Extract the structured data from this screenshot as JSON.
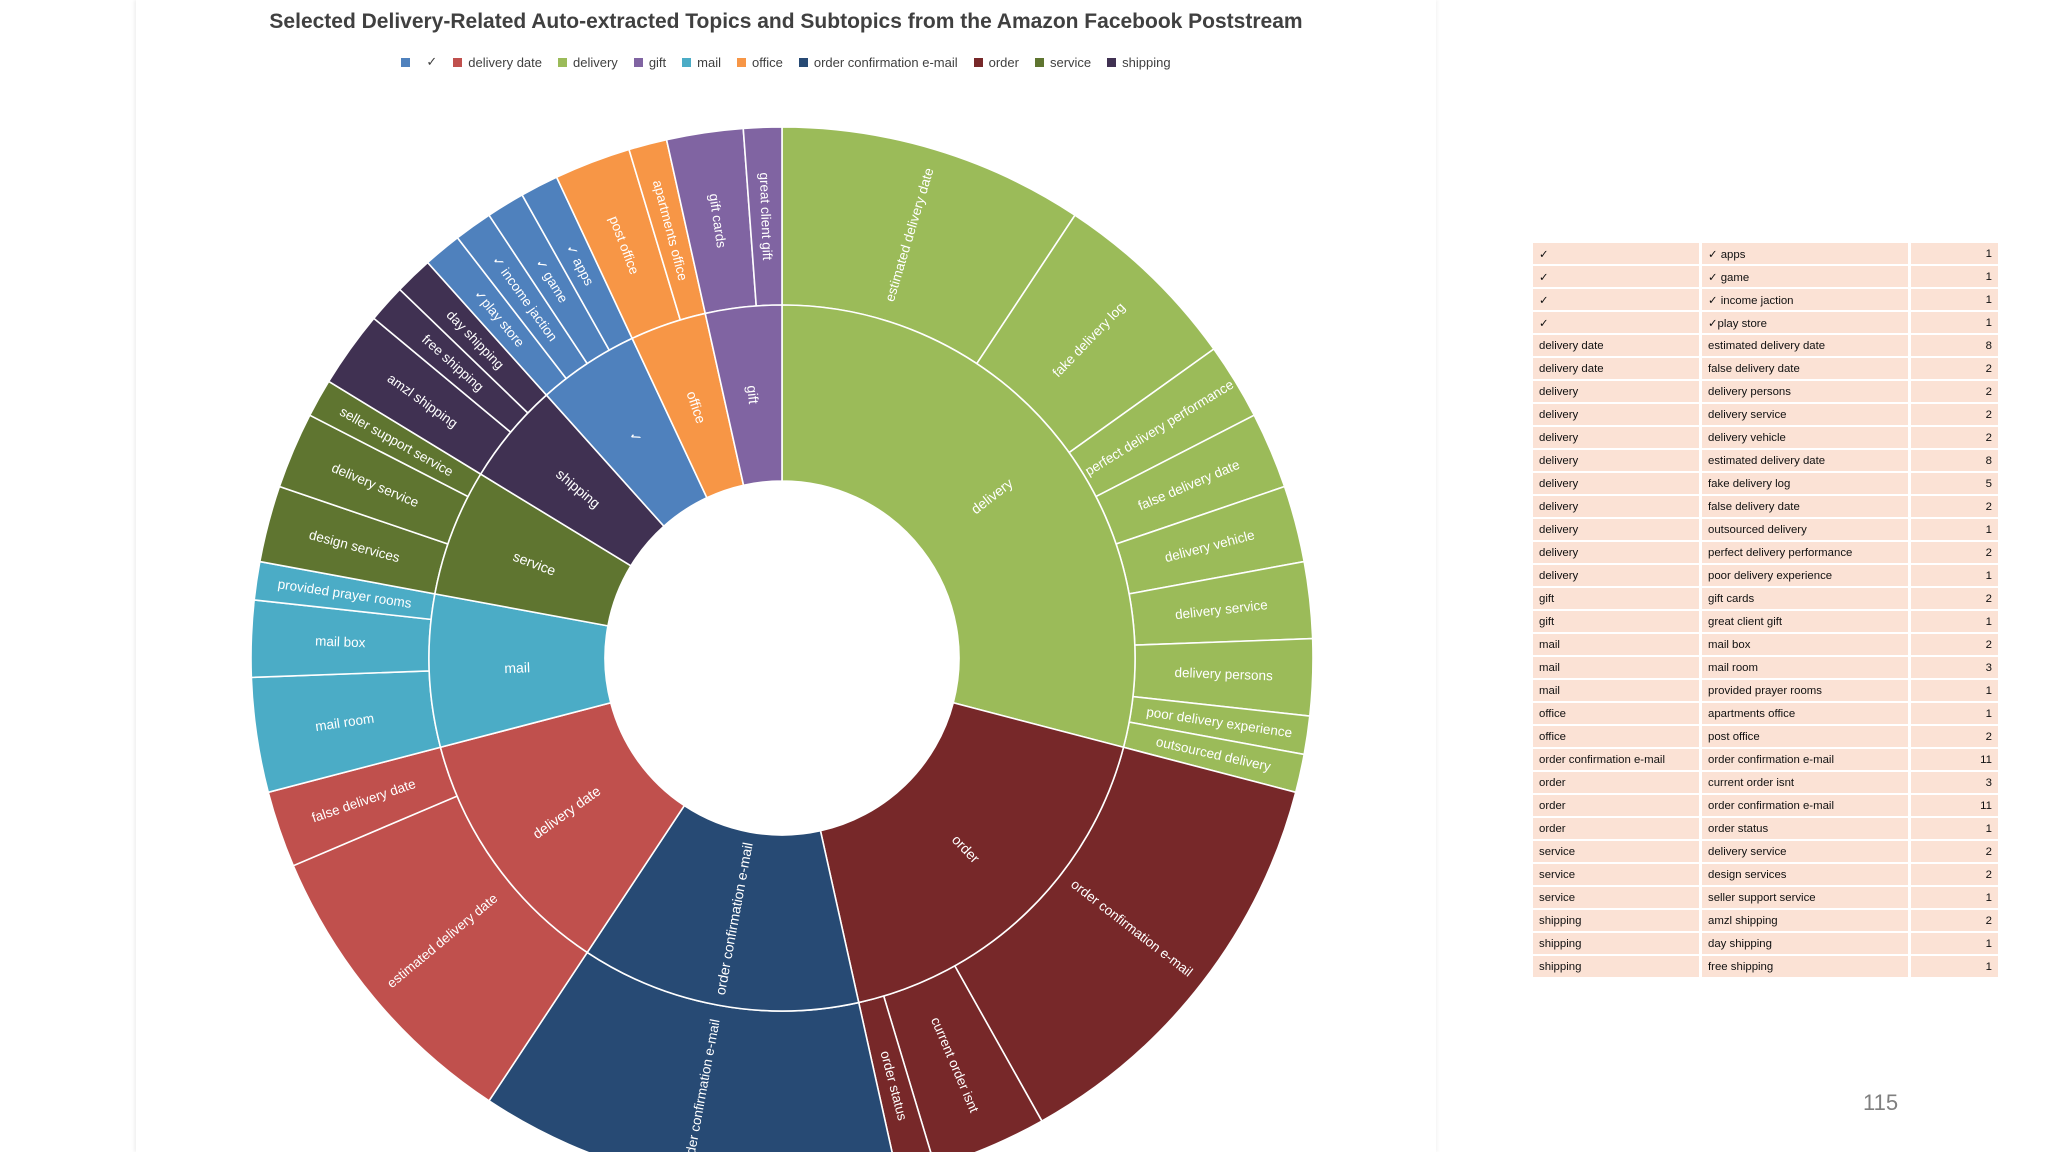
{
  "slide": {
    "page_number": "115"
  },
  "chart_data": {
    "type": "sunburst",
    "title": "Selected Delivery-Related Auto-extracted Topics and Subtopics from the Amazon Facebook Poststream",
    "legend_position": "top",
    "categories": [
      {
        "name": "delivery",
        "color": "#9bbb59",
        "children": [
          {
            "name": "estimated delivery date",
            "value": 8
          },
          {
            "name": "fake delivery log",
            "value": 5
          },
          {
            "name": "perfect delivery performance",
            "value": 2
          },
          {
            "name": "false delivery date",
            "value": 2
          },
          {
            "name": "delivery vehicle",
            "value": 2
          },
          {
            "name": "delivery service",
            "value": 2
          },
          {
            "name": "delivery persons",
            "value": 2
          },
          {
            "name": "poor delivery experience",
            "value": 1
          },
          {
            "name": "outsourced delivery",
            "value": 1
          }
        ]
      },
      {
        "name": "order",
        "color": "#772829",
        "children": [
          {
            "name": "order confirmation e-mail",
            "value": 11
          },
          {
            "name": "current order isnt",
            "value": 3
          },
          {
            "name": "order status",
            "value": 1
          }
        ]
      },
      {
        "name": "order confirmation e-mail",
        "color": "#274a74",
        "children": [
          {
            "name": "order confirmation e-mail",
            "value": 11
          }
        ]
      },
      {
        "name": "delivery date",
        "color": "#c0504d",
        "children": [
          {
            "name": "estimated delivery date",
            "value": 8
          },
          {
            "name": "false delivery date",
            "value": 2
          }
        ]
      },
      {
        "name": "mail",
        "color": "#4bacc6",
        "children": [
          {
            "name": "mail room",
            "value": 3
          },
          {
            "name": "mail box",
            "value": 2
          },
          {
            "name": "provided prayer rooms",
            "value": 1
          }
        ]
      },
      {
        "name": "service",
        "color": "#5f7530",
        "children": [
          {
            "name": "design services",
            "value": 2
          },
          {
            "name": "delivery service",
            "value": 2
          },
          {
            "name": "seller support service",
            "value": 1
          }
        ]
      },
      {
        "name": "shipping",
        "color": "#403152",
        "children": [
          {
            "name": "amzl shipping",
            "value": 2
          },
          {
            "name": "free shipping",
            "value": 1
          },
          {
            "name": "day shipping",
            "value": 1
          }
        ]
      },
      {
        "name": "✓",
        "color": "#4f81bd",
        "children": [
          {
            "name": "✓play store",
            "value": 1
          },
          {
            "name": "✓ income jaction",
            "value": 1
          },
          {
            "name": "✓ game",
            "value": 1
          },
          {
            "name": "✓ apps",
            "value": 1
          }
        ]
      },
      {
        "name": "office",
        "color": "#f79646",
        "children": [
          {
            "name": "post office",
            "value": 2
          },
          {
            "name": "apartments office",
            "value": 1
          }
        ]
      },
      {
        "name": "gift",
        "color": "#8064a2",
        "children": [
          {
            "name": "gift cards",
            "value": 2
          },
          {
            "name": "great client gift",
            "value": 1
          }
        ]
      }
    ],
    "legend": [
      {
        "label": "",
        "color": "#4f81bd"
      },
      {
        "label": "✓",
        "color": "#ffffff"
      },
      {
        "label": "delivery date",
        "color": "#c0504d"
      },
      {
        "label": "delivery",
        "color": "#9bbb59"
      },
      {
        "label": "gift",
        "color": "#8064a2"
      },
      {
        "label": "mail",
        "color": "#4bacc6"
      },
      {
        "label": "office",
        "color": "#f79646"
      },
      {
        "label": "order confirmation e-mail",
        "color": "#274a74"
      },
      {
        "label": "order",
        "color": "#772829"
      },
      {
        "label": "service",
        "color": "#5f7530"
      },
      {
        "label": "shipping",
        "color": "#403152"
      }
    ],
    "table": [
      [
        "✓",
        "✓ apps",
        "1"
      ],
      [
        "✓",
        "✓ game",
        "1"
      ],
      [
        "✓",
        "✓ income jaction",
        "1"
      ],
      [
        "✓",
        "✓play store",
        "1"
      ],
      [
        "delivery date",
        "estimated delivery date",
        "8"
      ],
      [
        "delivery date",
        "false delivery date",
        "2"
      ],
      [
        "delivery",
        "delivery persons",
        "2"
      ],
      [
        "delivery",
        "delivery service",
        "2"
      ],
      [
        "delivery",
        "delivery vehicle",
        "2"
      ],
      [
        "delivery",
        "estimated delivery date",
        "8"
      ],
      [
        "delivery",
        "fake delivery log",
        "5"
      ],
      [
        "delivery",
        "false delivery date",
        "2"
      ],
      [
        "delivery",
        "outsourced delivery",
        "1"
      ],
      [
        "delivery",
        "perfect delivery performance",
        "2"
      ],
      [
        "delivery",
        "poor delivery experience",
        "1"
      ],
      [
        "gift",
        "gift cards",
        "2"
      ],
      [
        "gift",
        "great client gift",
        "1"
      ],
      [
        "mail",
        "mail box",
        "2"
      ],
      [
        "mail",
        "mail room",
        "3"
      ],
      [
        "mail",
        "provided prayer rooms",
        "1"
      ],
      [
        "office",
        "apartments office",
        "1"
      ],
      [
        "office",
        "post office",
        "2"
      ],
      [
        "order confirmation e-mail",
        "order confirmation e-mail",
        "11"
      ],
      [
        "order",
        "current order isnt",
        "3"
      ],
      [
        "order",
        "order confirmation e-mail",
        "11"
      ],
      [
        "order",
        "order status",
        "1"
      ],
      [
        "service",
        "delivery service",
        "2"
      ],
      [
        "service",
        "design services",
        "2"
      ],
      [
        "service",
        "seller support service",
        "1"
      ],
      [
        "shipping",
        "amzl shipping",
        "2"
      ],
      [
        "shipping",
        "day shipping",
        "1"
      ],
      [
        "shipping",
        "free shipping",
        "1"
      ]
    ]
  }
}
